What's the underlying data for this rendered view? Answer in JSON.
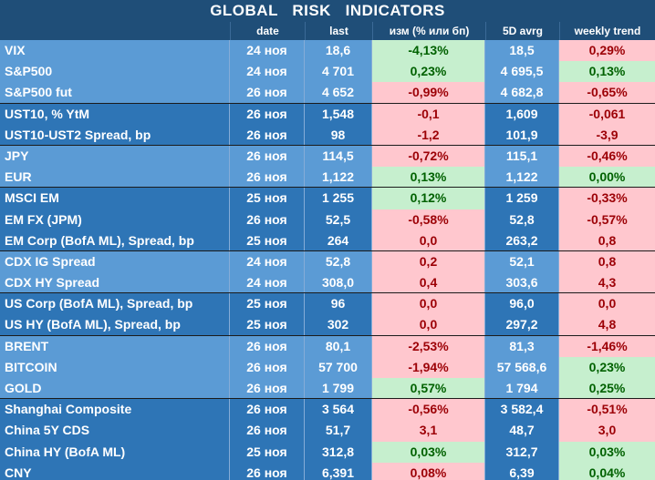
{
  "title": "GLOBAL   RISK   INDICATORS",
  "headers": {
    "name": "",
    "date": "date",
    "last": "last",
    "change": "изм (% или бп)",
    "avg": "5D avrg",
    "trend": "weekly trend"
  },
  "colors": {
    "header_bg": "#1f4e78",
    "light_row_bg": "#5b9bd5",
    "dark_row_bg": "#2e75b6",
    "positive_bg": "#c6efce",
    "positive_text": "#006100",
    "negative_bg": "#ffc7ce",
    "negative_text": "#9c0006"
  },
  "rows": [
    {
      "name": "VIX",
      "date": "24 ноя",
      "last": "18,6",
      "change": "-4,13%",
      "change_tone": "pos",
      "avg": "18,5",
      "trend": "0,29%",
      "trend_tone": "neg",
      "group": "light",
      "group_end": false
    },
    {
      "name": "S&P500",
      "date": "24 ноя",
      "last": "4 701",
      "change": "0,23%",
      "change_tone": "pos",
      "avg": "4 695,5",
      "trend": "0,13%",
      "trend_tone": "pos",
      "group": "light",
      "group_end": false
    },
    {
      "name": "S&P500 fut",
      "date": "26 ноя",
      "last": "4 652",
      "change": "-0,99%",
      "change_tone": "neg",
      "avg": "4 682,8",
      "trend": "-0,65%",
      "trend_tone": "neg",
      "group": "light",
      "group_end": true
    },
    {
      "name": "UST10, % YtM",
      "date": "26 ноя",
      "last": "1,548",
      "change": "-0,1",
      "change_tone": "neg",
      "avg": "1,609",
      "trend": "-0,061",
      "trend_tone": "neg",
      "group": "dark",
      "group_end": false
    },
    {
      "name": "UST10-UST2 Spread, bp",
      "date": "26 ноя",
      "last": "98",
      "change": "-1,2",
      "change_tone": "neg",
      "avg": "101,9",
      "trend": "-3,9",
      "trend_tone": "neg",
      "group": "dark",
      "group_end": true
    },
    {
      "name": "JPY",
      "date": "26 ноя",
      "last": "114,5",
      "change": "-0,72%",
      "change_tone": "neg",
      "avg": "115,1",
      "trend": "-0,46%",
      "trend_tone": "neg",
      "group": "light",
      "group_end": false
    },
    {
      "name": "EUR",
      "date": "26 ноя",
      "last": "1,122",
      "change": "0,13%",
      "change_tone": "pos",
      "avg": "1,122",
      "trend": "0,00%",
      "trend_tone": "pos",
      "group": "light",
      "group_end": true
    },
    {
      "name": "MSCI EM",
      "date": "25 ноя",
      "last": "1 255",
      "change": "0,12%",
      "change_tone": "pos",
      "avg": "1 259",
      "trend": "-0,33%",
      "trend_tone": "neg",
      "group": "dark",
      "group_end": false
    },
    {
      "name": "EM FX (JPM)",
      "date": "26 ноя",
      "last": "52,5",
      "change": "-0,58%",
      "change_tone": "neg",
      "avg": "52,8",
      "trend": "-0,57%",
      "trend_tone": "neg",
      "group": "dark",
      "group_end": false
    },
    {
      "name": "EM Corp (BofA ML), Spread, bp",
      "date": "25 ноя",
      "last": "264",
      "change": "0,0",
      "change_tone": "neg",
      "avg": "263,2",
      "trend": "0,8",
      "trend_tone": "neg",
      "group": "dark",
      "group_end": true
    },
    {
      "name": "CDX IG Spread",
      "date": "24 ноя",
      "last": "52,8",
      "change": "0,2",
      "change_tone": "neg",
      "avg": "52,1",
      "trend": "0,8",
      "trend_tone": "neg",
      "group": "light",
      "group_end": false
    },
    {
      "name": "CDX HY Spread",
      "date": "24 ноя",
      "last": "308,0",
      "change": "0,4",
      "change_tone": "neg",
      "avg": "303,6",
      "trend": "4,3",
      "trend_tone": "neg",
      "group": "light",
      "group_end": true
    },
    {
      "name": "US Corp (BofA ML), Spread, bp",
      "date": "25 ноя",
      "last": "96",
      "change": "0,0",
      "change_tone": "neg",
      "avg": "96,0",
      "trend": "0,0",
      "trend_tone": "neg",
      "group": "dark",
      "group_end": false
    },
    {
      "name": "US HY (BofA ML), Spread, bp",
      "date": "25 ноя",
      "last": "302",
      "change": "0,0",
      "change_tone": "neg",
      "avg": "297,2",
      "trend": "4,8",
      "trend_tone": "neg",
      "group": "dark",
      "group_end": true
    },
    {
      "name": "BRENT",
      "date": "26 ноя",
      "last": "80,1",
      "change": "-2,53%",
      "change_tone": "neg",
      "avg": "81,3",
      "trend": "-1,46%",
      "trend_tone": "neg",
      "group": "light",
      "group_end": false
    },
    {
      "name": "BITCOIN",
      "date": "26 ноя",
      "last": "57 700",
      "change": "-1,94%",
      "change_tone": "neg",
      "avg": "57 568,6",
      "trend": "0,23%",
      "trend_tone": "pos",
      "group": "light",
      "group_end": false
    },
    {
      "name": "GOLD",
      "date": "26 ноя",
      "last": "1 799",
      "change": "0,57%",
      "change_tone": "pos",
      "avg": "1 794",
      "trend": "0,25%",
      "trend_tone": "pos",
      "group": "light",
      "group_end": true
    },
    {
      "name": "Shanghai Composite",
      "date": "26 ноя",
      "last": "3 564",
      "change": "-0,56%",
      "change_tone": "neg",
      "avg": "3 582,4",
      "trend": "-0,51%",
      "trend_tone": "neg",
      "group": "dark",
      "group_end": false
    },
    {
      "name": "China 5Y CDS",
      "date": "26 ноя",
      "last": "51,7",
      "change": "3,1",
      "change_tone": "neg",
      "avg": "48,7",
      "trend": "3,0",
      "trend_tone": "neg",
      "group": "dark",
      "group_end": false
    },
    {
      "name": "China HY (BofA ML)",
      "date": "25 ноя",
      "last": "312,8",
      "change": "0,03%",
      "change_tone": "pos",
      "avg": "312,7",
      "trend": "0,03%",
      "trend_tone": "pos",
      "group": "dark",
      "group_end": false
    },
    {
      "name": "CNY",
      "date": "26 ноя",
      "last": "6,391",
      "change": "0,08%",
      "change_tone": "neg",
      "avg": "6,39",
      "trend": "0,04%",
      "trend_tone": "pos",
      "group": "dark",
      "group_end": false
    }
  ]
}
